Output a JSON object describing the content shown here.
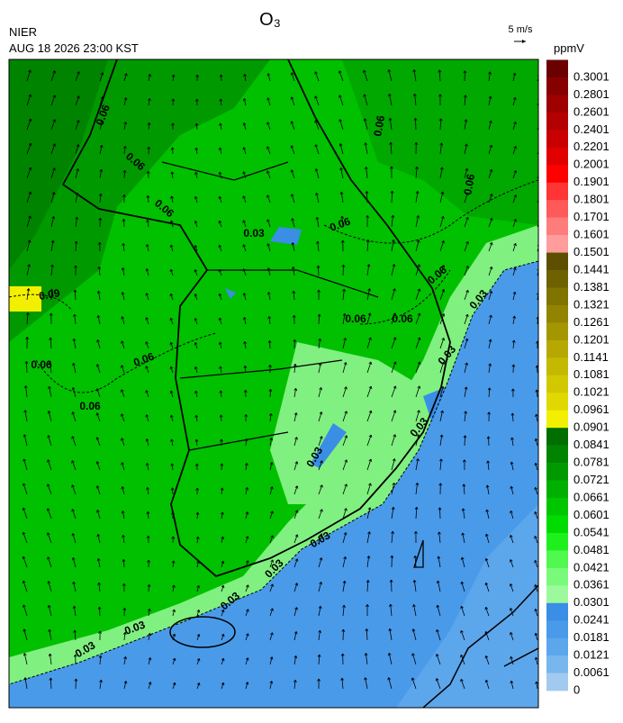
{
  "header": {
    "title": "O₃",
    "agency": "NIER",
    "datetime": "AUG 18 2026 23:00 KST",
    "vector_reference": "5 m/s"
  },
  "colorbar": {
    "unit": "ppmV",
    "labels": [
      0.3001,
      0.2801,
      0.2601,
      0.2401,
      0.2201,
      0.2001,
      0.1901,
      0.1801,
      0.1701,
      0.1601,
      0.1501,
      0.1441,
      0.1381,
      0.1321,
      0.1261,
      0.1201,
      0.1141,
      0.1081,
      0.1021,
      0.0961,
      0.0901,
      0.0841,
      0.0781,
      0.0721,
      0.0661,
      0.0601,
      0.0541,
      0.0481,
      0.0421,
      0.0361,
      0.0301,
      0.0241,
      0.0181,
      0.0121,
      0.0061,
      0
    ],
    "colors": [
      "#6a0000",
      "#860000",
      "#9e0000",
      "#b40000",
      "#c80000",
      "#e00000",
      "#ff0000",
      "#ff3434",
      "#ff5a5a",
      "#ff7c7c",
      "#ff9c9c",
      "#5c5000",
      "#6e6200",
      "#807300",
      "#928400",
      "#a49600",
      "#b6a800",
      "#c4b800",
      "#d2c800",
      "#e0d800",
      "#f2f000",
      "#006e00",
      "#008400",
      "#009a00",
      "#00b000",
      "#00c600",
      "#00dc00",
      "#1ef01e",
      "#50f850",
      "#7afa7a",
      "#9cfa9c",
      "#3a8ee6",
      "#4a9aea",
      "#5ca6ec",
      "#78b6ee",
      "#a2caf0"
    ]
  },
  "map": {
    "contour_labels": [
      "0.06",
      "0.06",
      "0.06",
      "0.06",
      "0.06",
      "0.06",
      "0.06",
      "0.06",
      "0.06",
      "0.06",
      "0.06",
      "0.06",
      "0.09",
      "0.03",
      "0.03",
      "0.03",
      "0.03",
      "0.03",
      "0.03",
      "0.03",
      "0.03",
      "0.03",
      "0.03"
    ]
  }
}
